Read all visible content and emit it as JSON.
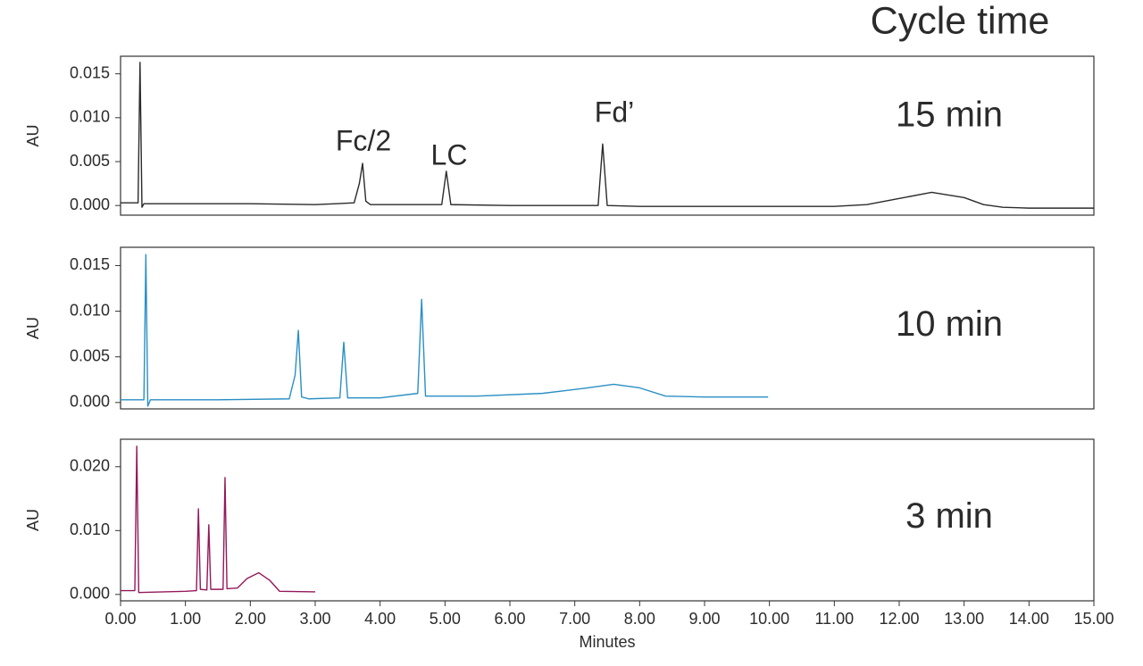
{
  "title": "Cycle time",
  "chart_data": [
    {
      "type": "line",
      "title": "15 min",
      "title_color": "#2b2b2b",
      "ylabel": "AU",
      "annotations": [
        "Fc/2",
        "LC",
        "Fd’"
      ],
      "xlim": [
        0,
        15
      ],
      "ylim": [
        -0.0011,
        0.017
      ],
      "yticks": [
        {
          "value": 0,
          "label": "0.000"
        },
        0.005,
        {
          "value": 0.01,
          "label": "0.010"
        },
        0.015
      ],
      "series": [
        {
          "color": "#2b2b2b",
          "x": [
            0,
            0.27,
            0.3,
            0.33,
            0.36,
            1.0,
            2.0,
            3.0,
            3.6,
            3.68,
            3.73,
            3.78,
            3.85,
            4.5,
            4.95,
            5.02,
            5.09,
            6.0,
            7.0,
            7.36,
            7.43,
            7.5,
            8.0,
            9.0,
            10.0,
            11.0,
            11.5,
            12.0,
            12.5,
            13.0,
            13.3,
            13.6,
            14.0,
            15.0
          ],
          "values": [
            0.0003,
            0.0003,
            0.0163,
            -0.0002,
            0.0002,
            0.0002,
            0.0002,
            0.0001,
            0.0003,
            0.0025,
            0.0048,
            0.0005,
            0.0001,
            0.0001,
            0.0001,
            0.0039,
            0.0001,
            0.0,
            0.0,
            0.0,
            0.007,
            0.0,
            -0.0001,
            -0.0001,
            -0.0001,
            -0.0001,
            0.0001,
            0.0008,
            0.0015,
            0.0009,
            0.0001,
            -0.0002,
            -0.0003,
            -0.0003
          ]
        }
      ]
    },
    {
      "type": "line",
      "title": "10 min",
      "title_color": "#1b7db5",
      "ylabel": "AU",
      "xlim": [
        0,
        15
      ],
      "ylim": [
        -0.0007,
        0.017
      ],
      "yticks": [
        {
          "value": 0,
          "label": "0.000"
        },
        0.005,
        {
          "value": 0.01,
          "label": "0.010"
        },
        0.015
      ],
      "series": [
        {
          "color": "#2a8fc4",
          "x": [
            0,
            0.36,
            0.39,
            0.42,
            0.46,
            1.5,
            2.6,
            2.69,
            2.74,
            2.79,
            2.9,
            3.38,
            3.44,
            3.5,
            4.0,
            4.58,
            4.64,
            4.7,
            5.5,
            6.5,
            7.2,
            7.6,
            8.0,
            8.4,
            9.0,
            9.98
          ],
          "values": [
            0.0003,
            0.0003,
            0.0162,
            -0.0004,
            0.0003,
            0.0003,
            0.0004,
            0.003,
            0.0079,
            0.0006,
            0.0004,
            0.0005,
            0.0066,
            0.0005,
            0.0005,
            0.001,
            0.0113,
            0.0007,
            0.0007,
            0.001,
            0.0016,
            0.002,
            0.0016,
            0.0007,
            0.0006,
            0.0006
          ]
        }
      ]
    },
    {
      "type": "line",
      "title": "3 min",
      "title_color": "#8e1a5a",
      "ylabel": "AU",
      "xlabel": "Minutes",
      "xlim": [
        0,
        15
      ],
      "ylim": [
        -0.001,
        0.0243
      ],
      "xticks": [
        {
          "value": 0,
          "label": "0.00"
        },
        {
          "value": 1,
          "label": "1.00"
        },
        {
          "value": 2,
          "label": "2.00"
        },
        {
          "value": 3,
          "label": "3.00"
        },
        {
          "value": 4,
          "label": "4.00"
        },
        {
          "value": 5,
          "label": "5.00"
        },
        {
          "value": 6,
          "label": "6.00"
        },
        {
          "value": 7,
          "label": "7.00"
        },
        {
          "value": 8,
          "label": "8.00"
        },
        {
          "value": 9,
          "label": "9.00"
        },
        {
          "value": 10,
          "label": "10.00"
        },
        {
          "value": 11,
          "label": "11.00"
        },
        {
          "value": 12,
          "label": "12.00"
        },
        {
          "value": 13,
          "label": "13.00"
        },
        {
          "value": 14,
          "label": "14.00"
        },
        {
          "value": 15,
          "label": "15.00"
        }
      ],
      "yticks": [
        {
          "value": 0,
          "label": "0.000"
        },
        {
          "value": 0.01,
          "label": "0.010"
        },
        {
          "value": 0.02,
          "label": "0.020"
        }
      ],
      "series": [
        {
          "color": "#93195a",
          "x": [
            0,
            0.22,
            0.25,
            0.28,
            1.0,
            1.17,
            1.2,
            1.23,
            1.33,
            1.36,
            1.39,
            1.58,
            1.61,
            1.64,
            1.8,
            1.95,
            2.13,
            2.3,
            2.45,
            3.0
          ],
          "values": [
            0.0006,
            0.0006,
            0.0232,
            0.0003,
            0.0005,
            0.0006,
            0.0134,
            0.0008,
            0.0007,
            0.0109,
            0.0008,
            0.0008,
            0.0183,
            0.0009,
            0.001,
            0.0025,
            0.0034,
            0.0022,
            0.0005,
            0.0004
          ]
        }
      ]
    }
  ]
}
